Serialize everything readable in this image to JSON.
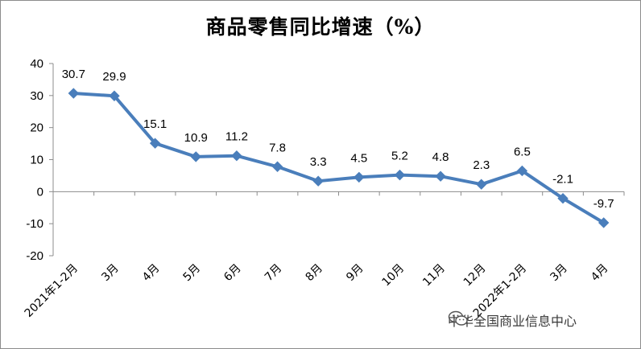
{
  "chart_data": {
    "type": "line",
    "title": "商品零售同比增速（%）",
    "categories": [
      "2021年1-2月",
      "3月",
      "4月",
      "5月",
      "6月",
      "7月",
      "8月",
      "9月",
      "10月",
      "11月",
      "12月",
      "2022年1-2月",
      "3月",
      "4月"
    ],
    "series": [
      {
        "values": [
          30.7,
          29.9,
          15.1,
          10.9,
          11.2,
          7.8,
          3.3,
          4.5,
          5.2,
          4.8,
          2.3,
          6.5,
          -2.1,
          -9.7
        ],
        "color": "#4a7ebb"
      }
    ],
    "data_labels": [
      "30.7",
      "29.9",
      "15.1",
      "10.9",
      "11.2",
      "7.8",
      "3.3",
      "4.5",
      "5.2",
      "4.8",
      "2.3",
      "6.5",
      "-2.1",
      "-9.7"
    ],
    "yticks": [
      "-20",
      "-10",
      "0",
      "10",
      "20",
      "30",
      "40"
    ],
    "ylim": [
      -20,
      40
    ],
    "xlabel": "",
    "ylabel": "",
    "grid": false,
    "legend": "none"
  },
  "watermark": {
    "icon": "wechat-icon",
    "text": "中华全国商业信息中心"
  }
}
